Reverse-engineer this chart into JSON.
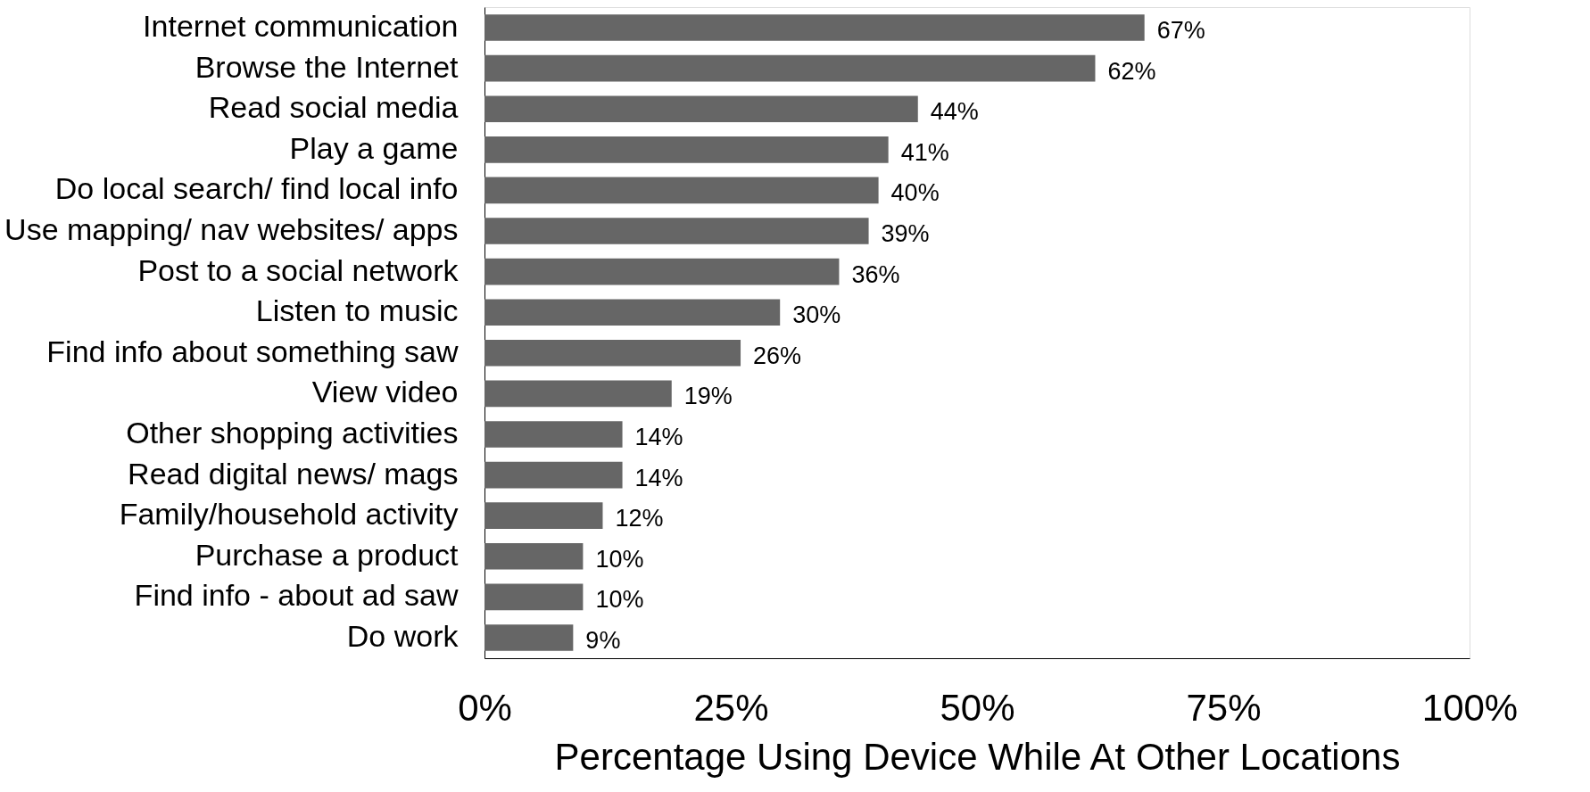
{
  "chart_data": {
    "type": "bar",
    "orientation": "horizontal",
    "xlabel": "Percentage Using Device While At Other Locations",
    "categories": [
      "Internet communication",
      "Browse the Internet",
      "Read social media",
      "Play a game",
      "Do local search/ find local info",
      "Use mapping/ nav websites/ apps",
      "Post to a social network",
      "Listen to music",
      "Find info about something saw",
      "View video",
      "Other shopping activities",
      "Read digital news/ mags",
      "Family/household activity",
      "Purchase a product",
      "Find info - about ad saw",
      "Do work"
    ],
    "values": [
      67,
      62,
      44,
      41,
      40,
      39,
      36,
      30,
      26,
      19,
      14,
      14,
      12,
      10,
      10,
      9
    ],
    "value_labels": [
      "67%",
      "62%",
      "44%",
      "41%",
      "40%",
      "39%",
      "36%",
      "30%",
      "26%",
      "19%",
      "14%",
      "14%",
      "12%",
      "10%",
      "10%",
      "9%"
    ],
    "color": "#666666",
    "xlim": [
      0,
      100
    ],
    "xticks": [
      {
        "value": 0,
        "label": "0%"
      },
      {
        "value": 25,
        "label": "25%"
      },
      {
        "value": 50,
        "label": "50%"
      },
      {
        "value": 75,
        "label": "75%"
      },
      {
        "value": 100,
        "label": "100%"
      }
    ],
    "grid": false
  }
}
